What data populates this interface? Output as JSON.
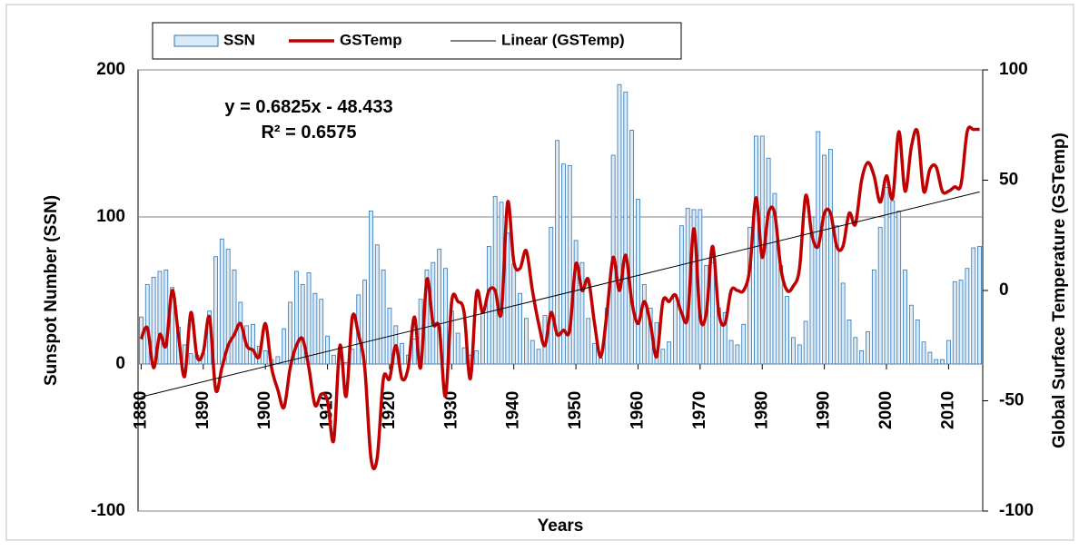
{
  "chart_data": {
    "type": "bar-line",
    "x": [
      1880,
      1881,
      1882,
      1883,
      1884,
      1885,
      1886,
      1887,
      1888,
      1889,
      1890,
      1891,
      1892,
      1893,
      1894,
      1895,
      1896,
      1897,
      1898,
      1899,
      1900,
      1901,
      1902,
      1903,
      1904,
      1905,
      1906,
      1907,
      1908,
      1909,
      1910,
      1911,
      1912,
      1913,
      1914,
      1915,
      1916,
      1917,
      1918,
      1919,
      1920,
      1921,
      1922,
      1923,
      1924,
      1925,
      1926,
      1927,
      1928,
      1929,
      1930,
      1931,
      1932,
      1933,
      1934,
      1935,
      1936,
      1937,
      1938,
      1939,
      1940,
      1941,
      1942,
      1943,
      1944,
      1945,
      1946,
      1947,
      1948,
      1949,
      1950,
      1951,
      1952,
      1953,
      1954,
      1955,
      1956,
      1957,
      1958,
      1959,
      1960,
      1961,
      1962,
      1963,
      1964,
      1965,
      1966,
      1967,
      1968,
      1969,
      1970,
      1971,
      1972,
      1973,
      1974,
      1975,
      1976,
      1977,
      1978,
      1979,
      1980,
      1981,
      1982,
      1983,
      1984,
      1985,
      1986,
      1987,
      1988,
      1989,
      1990,
      1991,
      1992,
      1993,
      1994,
      1995,
      1996,
      1997,
      1998,
      1999,
      2000,
      2001,
      2002,
      2003,
      2004,
      2005,
      2006,
      2007,
      2008,
      2009,
      2010,
      2011,
      2012,
      2013,
      2014,
      2015
    ],
    "series": [
      {
        "name": "SSN",
        "color": "#2e75b6",
        "fill": "#dbeaf7",
        "axis": "y",
        "values": [
          32,
          54,
          59,
          63,
          64,
          52,
          25,
          13,
          7,
          6,
          7,
          36,
          73,
          85,
          78,
          64,
          42,
          26,
          27,
          12,
          9,
          3,
          5,
          24,
          42,
          63,
          54,
          62,
          48,
          44,
          19,
          6,
          4,
          1,
          10,
          47,
          57,
          104,
          81,
          64,
          38,
          26,
          14,
          6,
          17,
          44,
          64,
          69,
          78,
          65,
          36,
          21,
          11,
          6,
          9,
          36,
          80,
          114,
          110,
          89,
          68,
          48,
          31,
          16,
          10,
          33,
          93,
          152,
          136,
          135,
          84,
          69,
          31,
          14,
          4,
          38,
          142,
          190,
          185,
          159,
          112,
          54,
          38,
          28,
          10,
          15,
          47,
          94,
          106,
          105,
          105,
          67,
          69,
          38,
          35,
          16,
          13,
          27,
          93,
          155,
          155,
          140,
          116,
          67,
          46,
          18,
          13,
          29,
          100,
          158,
          142,
          146,
          94,
          55,
          30,
          18,
          9,
          22,
          64,
          93,
          120,
          111,
          104,
          64,
          40,
          30,
          15,
          8,
          3,
          3,
          16,
          56,
          57,
          65,
          79,
          80
        ]
      },
      {
        "name": "GSTemp",
        "color": "#c00000",
        "axis": "y2",
        "values": [
          -22,
          -17,
          -35,
          -20,
          -25,
          0,
          -20,
          -39,
          -10,
          -30,
          -28,
          -12,
          -45,
          -35,
          -25,
          -20,
          -15,
          -25,
          -27,
          -30,
          -15,
          -35,
          -45,
          -53,
          -35,
          -25,
          -22,
          -35,
          -52,
          -47,
          -50,
          -68,
          -25,
          -48,
          -12,
          -20,
          -35,
          -76,
          -76,
          -40,
          -40,
          -25,
          -40,
          -35,
          -12,
          -35,
          5,
          -15,
          -17,
          -48,
          -5,
          -5,
          -10,
          -40,
          -1,
          -10,
          0,
          0,
          -10,
          40,
          13,
          10,
          18,
          0,
          -15,
          -25,
          -10,
          -20,
          -18,
          -18,
          12,
          0,
          5,
          -15,
          -30,
          -10,
          15,
          0,
          16,
          -5,
          -15,
          -5,
          -15,
          -30,
          -5,
          -5,
          -2,
          -10,
          -12,
          28,
          -12,
          -10,
          20,
          -10,
          -15,
          0,
          0,
          0,
          10,
          42,
          15,
          35,
          35,
          10,
          0,
          2,
          10,
          43,
          25,
          20,
          35,
          35,
          20,
          20,
          35,
          30,
          50,
          58,
          52,
          40,
          52,
          42,
          72,
          45,
          65,
          72,
          45,
          55,
          56,
          45,
          45,
          47,
          48,
          72,
          73,
          73
        ]
      }
    ],
    "trend_name": "Linear (GSTemp)",
    "trend_color": "#000000",
    "annotations": [
      "y = 0.6825x - 48.433",
      "R² = 0.6575"
    ],
    "xlabel": "Years",
    "ylabel": "Sunspot Number (SSN)",
    "y2label": "Global Surface Temperature (GSTemp)",
    "xlim": [
      1879.5,
      2015.5
    ],
    "xticks": [
      1880,
      1890,
      1900,
      1910,
      1920,
      1930,
      1940,
      1950,
      1960,
      1970,
      1980,
      1990,
      2000,
      2010
    ],
    "ylim": [
      -100,
      200
    ],
    "yticks": [
      -100,
      0,
      100,
      200
    ],
    "y2lim": [
      -100,
      100
    ],
    "y2ticks": [
      -100,
      -50,
      0,
      50,
      100
    ],
    "grid": true,
    "legend": "top"
  }
}
